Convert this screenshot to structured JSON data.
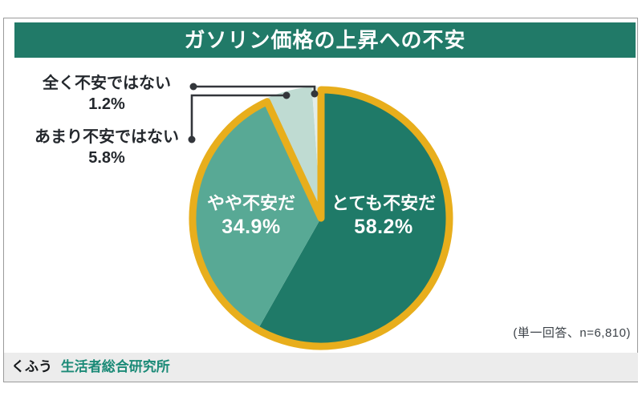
{
  "title_banner": {
    "text": "ガソリン価格の上昇への不安"
  },
  "chart_data": {
    "type": "pie",
    "title": "ガソリン価格の上昇への不安",
    "note": "(単一回答、n=6,810)",
    "sample_size": "n=6,810",
    "start_angle_deg": 0,
    "direction": "clockwise",
    "outline_color": "#E8AE1C",
    "callout_color": "#33363B",
    "slices": [
      {
        "label": "とても不安だ",
        "value": 58.2,
        "pct": "58.2%",
        "color": "#1F7A68",
        "label_placement": "inside"
      },
      {
        "label": "やや不安だ",
        "value": 34.9,
        "pct": "34.9%",
        "color": "#58A995",
        "label_placement": "inside"
      },
      {
        "label": "あまり不安ではない",
        "value": 5.8,
        "pct": "5.8%",
        "color": "#BFDBD2",
        "label_placement": "outside-callout"
      },
      {
        "label": "全く不安ではない",
        "value": 1.2,
        "pct": "1.2%",
        "color": "#E3EDE9",
        "label_placement": "outside-callout"
      }
    ]
  },
  "footer": {
    "brand_left": "くふう",
    "brand_right": "生活者総合研究所"
  },
  "colors": {
    "banner_bg": "#217A68",
    "banner_text": "#FFFFFF",
    "frame_border": "#9B9B9B",
    "footer_bg": "#ECECEC",
    "footer_brand_teal": "#1B8A77",
    "label_text": "#24282D",
    "note_text": "#3C4248"
  }
}
